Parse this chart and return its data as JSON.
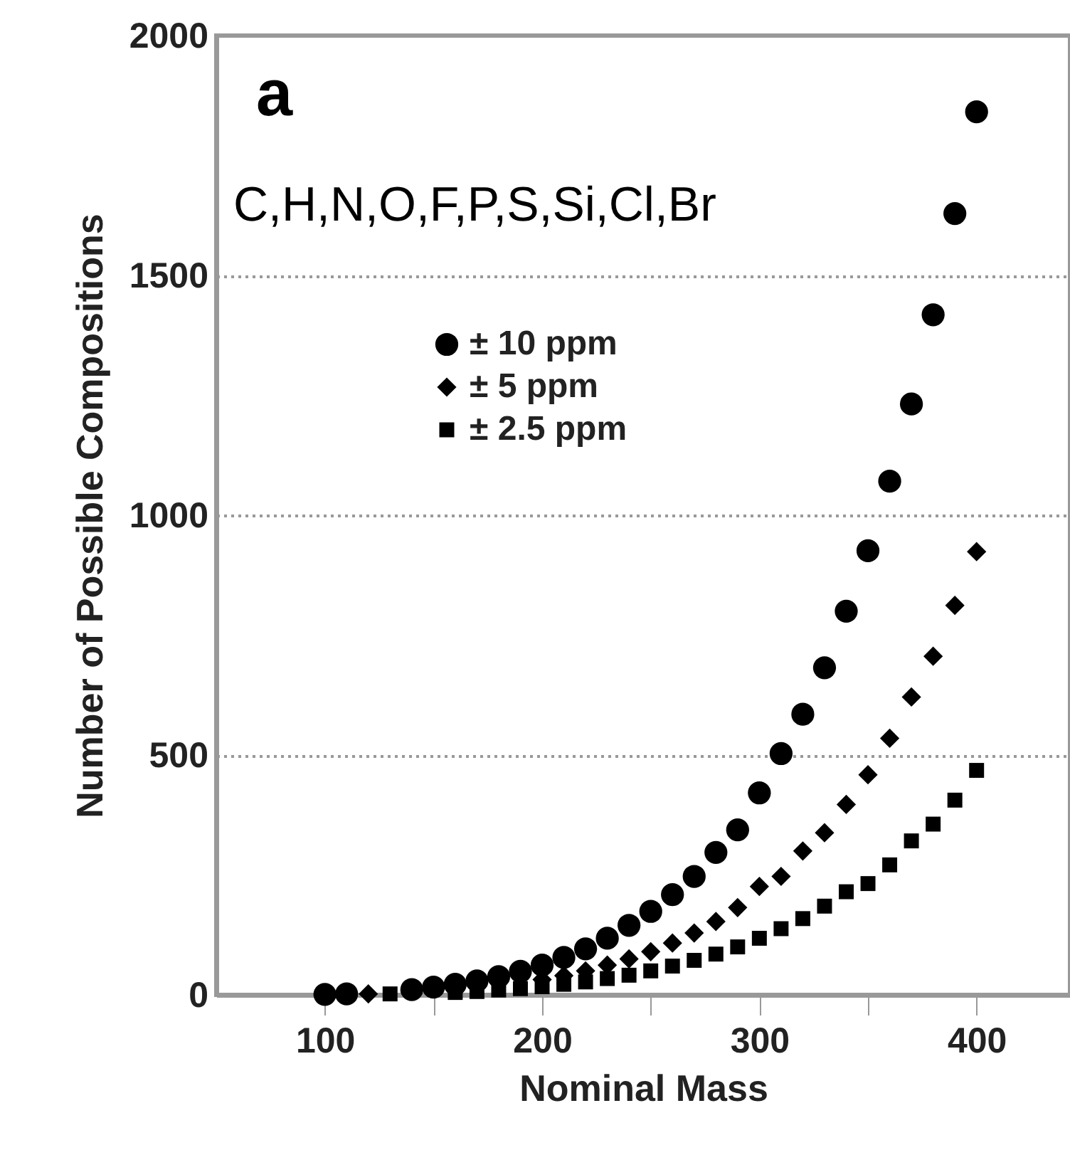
{
  "chart_data": {
    "type": "scatter",
    "xlabel": "Nominal Mass",
    "ylabel": "Number of Possible Compositions",
    "annotations": [
      "a",
      "C,H,N,O,F,P,S,Si,Cl,Br"
    ],
    "x": [
      100,
      110,
      120,
      130,
      140,
      150,
      160,
      170,
      180,
      190,
      200,
      210,
      220,
      230,
      240,
      250,
      260,
      270,
      280,
      290,
      300,
      310,
      320,
      330,
      340,
      350,
      360,
      370,
      380,
      390,
      400
    ],
    "series": [
      {
        "name": "± 10 ppm",
        "color": "#000000",
        "marker": "circle",
        "values": [
          1,
          2,
          null,
          null,
          11,
          16,
          22,
          29,
          38,
          49,
          62,
          78,
          96,
          118,
          145,
          174,
          209,
          247,
          297,
          344,
          421,
          503,
          585,
          682,
          800,
          926,
          1071,
          1232,
          1418,
          1629,
          1841
        ]
      },
      {
        "name": "± 5 ppm",
        "color": "#000000",
        "marker": "diamond",
        "values": [
          null,
          null,
          2,
          null,
          null,
          null,
          null,
          null,
          null,
          null,
          32,
          40,
          50,
          62,
          75,
          90,
          108,
          129,
          153,
          182,
          226,
          247,
          300,
          338,
          397,
          459,
          535,
          621,
          706,
          812,
          924
        ]
      },
      {
        "name": "± 2.5 ppm",
        "color": "#000000",
        "marker": "square",
        "values": [
          null,
          null,
          null,
          2,
          null,
          null,
          5,
          7,
          10,
          13,
          17,
          22,
          27,
          34,
          41,
          50,
          60,
          72,
          85,
          100,
          118,
          138,
          159,
          185,
          215,
          232,
          271,
          321,
          356,
          406,
          468
        ]
      }
    ],
    "xlim": [
      50,
      443
    ],
    "ylim": [
      0,
      2000
    ],
    "xticks": [
      100,
      {
        "value": 150,
        "label": null
      },
      200,
      {
        "value": 250,
        "label": null
      },
      300,
      {
        "value": 350,
        "label": null
      },
      400
    ],
    "yticks": [
      0,
      500,
      1000,
      1500,
      2000
    ],
    "grid": "y",
    "legend": "top left"
  }
}
